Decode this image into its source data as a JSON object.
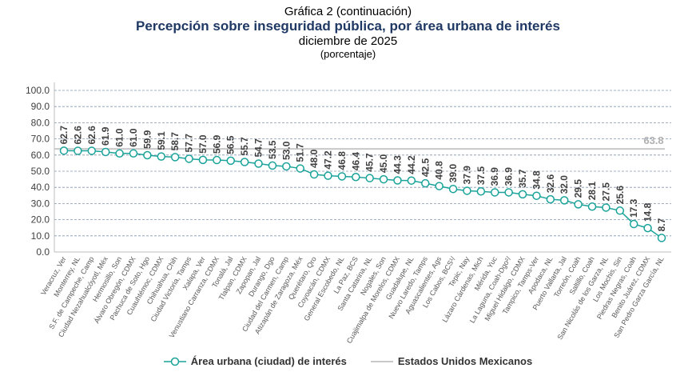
{
  "header": {
    "title": "Gráfica 2 (continuación)",
    "subtitle": "Percepción sobre inseguridad pública, por área urbana de interés",
    "period": "diciembre de 2025",
    "unit": "(porcentaje)"
  },
  "chart_data": {
    "type": "line",
    "title": "Percepción sobre inseguridad pública, por área urbana de interés",
    "ylim": [
      0,
      100
    ],
    "yticks": [
      "0.0",
      "10.0",
      "20.0",
      "30.0",
      "40.0",
      "50.0",
      "60.0",
      "70.0",
      "80.0",
      "90.0",
      "100.0"
    ],
    "grid": true,
    "legend_placement": "bottom",
    "categories": [
      "Veracruz, Ver",
      "Monterrey, NL",
      "S.F. de Campeche, Camp",
      "Ciudad Nezahualcóyotl, Méx",
      "Hermosillo, Son",
      "Álvaro Obregón, CDMX",
      "Pachuca de Soto, Hgo",
      "Cuauhtémoc, CDMX",
      "Chihuahua, Chih",
      "Ciudad Victoria, Tamps",
      "Xalapa, Ver",
      "Venustiano Carranza, CDMX",
      "Tonalá, Jal",
      "Tlalpan, CDMX",
      "Zapopan, Jal",
      "Durango, Dgo",
      "Ciudad del Carmen, Camp",
      "Atizapán de Zaragoza, Méx",
      "Querétaro, Qro",
      "Coyoacán, CDMX",
      "General Escobedo, NL",
      "La Paz, BCS",
      "Santa Catarina, NL",
      "Nogales, Son",
      "Cuajimalpa de Morelos, CDMX",
      "Guadalupe, NL",
      "Nuevo Laredo, Tamps",
      "Aguascalientes, Ags",
      "Los Cabos, BCS¹/",
      "Tepic, Nay",
      "Lázaro Cárdenas, Mich",
      "Mérida, Yuc",
      "La Laguna, Coah-Dgo²/",
      "Miguel Hidalgo, CDMX",
      "Tampico, Tamps-Ver",
      "Apodaca, NL",
      "Puerto Vallarta, Jal",
      "Torreón, Coah",
      "Saltillo, Coah",
      "San Nicolás de los Garza, NL",
      "Los Mochis, Sin",
      "Piedras Negras, Coah",
      "Benito Juárez, CDMX",
      "San Pedro Garza García, NL"
    ],
    "series": [
      {
        "name": "Área urbana (ciudad) de interés",
        "color": "#1aa39a",
        "values": [
          62.7,
          62.6,
          62.6,
          61.9,
          61.0,
          61.0,
          59.9,
          59.1,
          58.7,
          57.7,
          57.0,
          56.9,
          56.5,
          55.7,
          54.7,
          53.5,
          53.0,
          51.7,
          48.0,
          47.2,
          46.8,
          46.4,
          45.7,
          45.0,
          44.3,
          44.2,
          42.5,
          40.8,
          39.0,
          37.9,
          37.5,
          36.9,
          36.9,
          35.7,
          34.8,
          32.6,
          32.0,
          29.5,
          28.1,
          27.5,
          25.6,
          17.3,
          14.8,
          8.7
        ]
      },
      {
        "name": "Estados Unidos Mexicanos",
        "color": "#c8c8c8",
        "value": 63.8,
        "label": "63.8"
      }
    ]
  }
}
